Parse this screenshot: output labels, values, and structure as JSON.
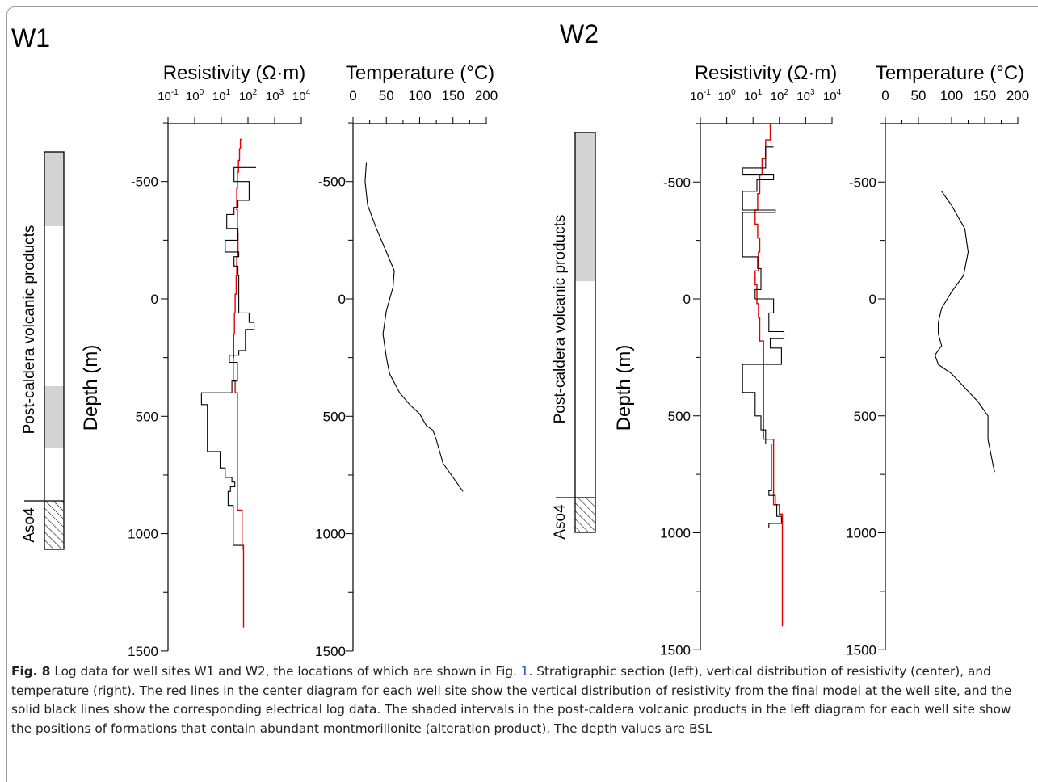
{
  "figure": {
    "panels": [
      {
        "id": "W1",
        "label": "W1",
        "section": {
          "unit_upper": "Post-caldera volcanic products",
          "unit_lower": "Aso4"
        },
        "ylabel": "Depth (m)",
        "res_title": "Resistivity (Ω·m)",
        "temp_title": "Temperature (°C)"
      },
      {
        "id": "W2",
        "label": "W2",
        "section": {
          "unit_upper": "Post-caldera volcanic products",
          "unit_lower": "Aso4"
        },
        "ylabel": "Depth (m)",
        "res_title": "Resistivity (Ω·m)",
        "temp_title": "Temperature (°C)"
      }
    ]
  },
  "chart_data": [
    {
      "type": "line",
      "well": "W1",
      "quantity": "resistivity",
      "title": "Resistivity (Ω·m)",
      "ylabel": "Depth (m)",
      "x_scale": "log",
      "xlim": [
        0.1,
        10000
      ],
      "ylim": [
        1500,
        -750
      ],
      "x_ticks": [
        "10-1",
        "100",
        "101",
        "102",
        "103",
        "104"
      ],
      "y_ticks": [
        "-500",
        "0",
        "500",
        "1000",
        "1500"
      ],
      "series": [
        {
          "color": "#e00000",
          "points": [
            [
              60,
              -680
            ],
            [
              52,
              -680
            ],
            [
              52,
              -640
            ],
            [
              48,
              -640
            ],
            [
              48,
              -590
            ],
            [
              44,
              -590
            ],
            [
              44,
              -540
            ],
            [
              40,
              -540
            ],
            [
              40,
              -470
            ],
            [
              38,
              -470
            ],
            [
              38,
              -380
            ],
            [
              40,
              -380
            ],
            [
              40,
              -280
            ],
            [
              42,
              -280
            ],
            [
              42,
              -180
            ],
            [
              38,
              -180
            ],
            [
              38,
              -100
            ],
            [
              36,
              -100
            ],
            [
              36,
              -20
            ],
            [
              33,
              -20
            ],
            [
              33,
              60
            ],
            [
              31,
              60
            ],
            [
              31,
              150
            ],
            [
              29,
              150
            ],
            [
              29,
              250
            ],
            [
              28,
              250
            ],
            [
              28,
              350
            ],
            [
              33,
              350
            ],
            [
              33,
              400
            ],
            [
              40,
              400
            ],
            [
              40,
              600
            ],
            [
              40,
              900
            ],
            [
              60,
              900
            ],
            [
              60,
              1050
            ],
            [
              68,
              1050
            ],
            [
              68,
              1400
            ]
          ]
        },
        {
          "color": "#000000",
          "points": [
            [
              200,
              -560
            ],
            [
              30,
              -560
            ],
            [
              30,
              -500
            ],
            [
              110,
              -500
            ],
            [
              110,
              -420
            ],
            [
              42,
              -420
            ],
            [
              42,
              -390
            ],
            [
              30,
              -390
            ],
            [
              30,
              -360
            ],
            [
              16,
              -360
            ],
            [
              16,
              -300
            ],
            [
              42,
              -300
            ],
            [
              42,
              -250
            ],
            [
              14,
              -250
            ],
            [
              14,
              -200
            ],
            [
              45,
              -200
            ],
            [
              45,
              -180
            ],
            [
              30,
              -180
            ],
            [
              30,
              -140
            ],
            [
              42,
              -140
            ],
            [
              42,
              -100
            ],
            [
              45,
              -100
            ],
            [
              45,
              60
            ],
            [
              110,
              60
            ],
            [
              110,
              100
            ],
            [
              170,
              100
            ],
            [
              170,
              130
            ],
            [
              80,
              130
            ],
            [
              80,
              220
            ],
            [
              45,
              220
            ],
            [
              45,
              240
            ],
            [
              20,
              240
            ],
            [
              20,
              270
            ],
            [
              40,
              270
            ],
            [
              40,
              350
            ],
            [
              25,
              350
            ],
            [
              25,
              400
            ],
            [
              1.8,
              400
            ],
            [
              1.8,
              450
            ],
            [
              3,
              450
            ],
            [
              3,
              650
            ],
            [
              9,
              650
            ],
            [
              9,
              720
            ],
            [
              14,
              720
            ],
            [
              14,
              760
            ],
            [
              25,
              760
            ],
            [
              25,
              780
            ],
            [
              32,
              780
            ],
            [
              32,
              800
            ],
            [
              22,
              800
            ],
            [
              22,
              820
            ],
            [
              18,
              820
            ],
            [
              18,
              880
            ],
            [
              28,
              880
            ],
            [
              28,
              1050
            ],
            [
              60,
              1050
            ],
            [
              60,
              1070
            ]
          ]
        }
      ]
    },
    {
      "type": "line",
      "well": "W1",
      "quantity": "temperature",
      "title": "Temperature (°C)",
      "ylabel": "Depth (m)",
      "xlim": [
        0,
        200
      ],
      "ylim": [
        1500,
        -750
      ],
      "x_ticks": [
        "0",
        "50",
        "100",
        "150",
        "200"
      ],
      "y_ticks": [
        "-500",
        "0",
        "500",
        "1000",
        "1500"
      ],
      "series": [
        {
          "color": "#000000",
          "points": [
            [
              20,
              -580
            ],
            [
              18,
              -500
            ],
            [
              22,
              -400
            ],
            [
              35,
              -300
            ],
            [
              50,
              -200
            ],
            [
              62,
              -120
            ],
            [
              60,
              -50
            ],
            [
              50,
              50
            ],
            [
              45,
              150
            ],
            [
              50,
              250
            ],
            [
              55,
              320
            ],
            [
              70,
              400
            ],
            [
              85,
              450
            ],
            [
              100,
              490
            ],
            [
              110,
              540
            ],
            [
              120,
              560
            ],
            [
              125,
              600
            ],
            [
              135,
              700
            ],
            [
              165,
              820
            ]
          ]
        }
      ]
    },
    {
      "type": "line",
      "well": "W2",
      "quantity": "resistivity",
      "title": "Resistivity (Ω·m)",
      "ylabel": "Depth (m)",
      "x_scale": "log",
      "xlim": [
        0.1,
        10000
      ],
      "ylim": [
        1500,
        -750
      ],
      "x_ticks": [
        "10-1",
        "100",
        "101",
        "102",
        "103",
        "104"
      ],
      "y_ticks": [
        "-500",
        "0",
        "500",
        "1000",
        "1500"
      ],
      "series": [
        {
          "color": "#e00000",
          "points": [
            [
              70,
              -750
            ],
            [
              45,
              -750
            ],
            [
              45,
              -680
            ],
            [
              30,
              -680
            ],
            [
              30,
              -600
            ],
            [
              22,
              -600
            ],
            [
              22,
              -530
            ],
            [
              18,
              -530
            ],
            [
              18,
              -450
            ],
            [
              15,
              -450
            ],
            [
              15,
              -380
            ],
            [
              12,
              -380
            ],
            [
              12,
              -320
            ],
            [
              15,
              -320
            ],
            [
              15,
              -260
            ],
            [
              18,
              -260
            ],
            [
              18,
              -200
            ],
            [
              16,
              -200
            ],
            [
              16,
              -120
            ],
            [
              12,
              -120
            ],
            [
              12,
              -60
            ],
            [
              14,
              -60
            ],
            [
              14,
              20
            ],
            [
              16,
              20
            ],
            [
              16,
              80
            ],
            [
              18,
              80
            ],
            [
              18,
              180
            ],
            [
              25,
              180
            ],
            [
              25,
              400
            ],
            [
              25,
              600
            ],
            [
              60,
              600
            ],
            [
              60,
              880
            ],
            [
              100,
              880
            ],
            [
              100,
              920
            ],
            [
              130,
              920
            ],
            [
              130,
              1400
            ]
          ]
        },
        {
          "color": "#000000",
          "points": [
            [
              60,
              -650
            ],
            [
              30,
              -650
            ],
            [
              30,
              -560
            ],
            [
              4,
              -560
            ],
            [
              4,
              -530
            ],
            [
              60,
              -530
            ],
            [
              60,
              -510
            ],
            [
              14,
              -510
            ],
            [
              14,
              -460
            ],
            [
              4,
              -460
            ],
            [
              4,
              -380
            ],
            [
              70,
              -380
            ],
            [
              70,
              -370
            ],
            [
              4,
              -370
            ],
            [
              4,
              -180
            ],
            [
              15,
              -180
            ],
            [
              15,
              -130
            ],
            [
              20,
              -130
            ],
            [
              20,
              -40
            ],
            [
              12,
              -40
            ],
            [
              12,
              0
            ],
            [
              60,
              0
            ],
            [
              60,
              60
            ],
            [
              40,
              60
            ],
            [
              40,
              140
            ],
            [
              150,
              140
            ],
            [
              150,
              170
            ],
            [
              45,
              170
            ],
            [
              45,
              210
            ],
            [
              120,
              210
            ],
            [
              120,
              280
            ],
            [
              4,
              280
            ],
            [
              4,
              400
            ],
            [
              12,
              400
            ],
            [
              12,
              500
            ],
            [
              20,
              500
            ],
            [
              20,
              560
            ],
            [
              30,
              560
            ],
            [
              30,
              620
            ],
            [
              50,
              620
            ],
            [
              50,
              820
            ],
            [
              40,
              820
            ],
            [
              40,
              840
            ],
            [
              70,
              840
            ],
            [
              70,
              880
            ],
            [
              80,
              880
            ],
            [
              80,
              930
            ],
            [
              120,
              930
            ],
            [
              120,
              960
            ],
            [
              40,
              960
            ],
            [
              40,
              980
            ]
          ]
        }
      ]
    },
    {
      "type": "line",
      "well": "W2",
      "quantity": "temperature",
      "title": "Temperature (°C)",
      "ylabel": "Depth (m)",
      "xlim": [
        0,
        200
      ],
      "ylim": [
        1500,
        -750
      ],
      "x_ticks": [
        "0",
        "50",
        "100",
        "150",
        "200"
      ],
      "y_ticks": [
        "-500",
        "0",
        "500",
        "1000",
        "1500"
      ],
      "series": [
        {
          "color": "#000000",
          "points": [
            [
              85,
              -460
            ],
            [
              100,
              -400
            ],
            [
              120,
              -300
            ],
            [
              125,
              -200
            ],
            [
              118,
              -100
            ],
            [
              100,
              -30
            ],
            [
              85,
              40
            ],
            [
              80,
              100
            ],
            [
              80,
              150
            ],
            [
              85,
              200
            ],
            [
              75,
              240
            ],
            [
              80,
              280
            ],
            [
              100,
              320
            ],
            [
              120,
              380
            ],
            [
              140,
              440
            ],
            [
              155,
              500
            ],
            [
              155,
              600
            ],
            [
              162,
              700
            ],
            [
              165,
              740
            ]
          ]
        }
      ]
    }
  ],
  "caption": {
    "label": "Fig. 8",
    "segments": [
      {
        "text": "Log data for well sites W1 and W2, the locations of which are shown in Fig. ",
        "ref": false
      },
      {
        "text": "1",
        "ref": true
      },
      {
        "text": ". Stratigraphic section (left), vertical distribution of resistivity (center), and temperature (right). The red lines in the center diagram for each well site show the vertical distribution of resistivity from the final model at the well site, and the solid black lines show the corresponding electrical log data. The shaded intervals in the post-caldera volcanic products in the left diagram for each well site show the positions of formations that contain abundant montmorillonite (alteration product). The depth values are BSL",
        "ref": false
      }
    ]
  }
}
